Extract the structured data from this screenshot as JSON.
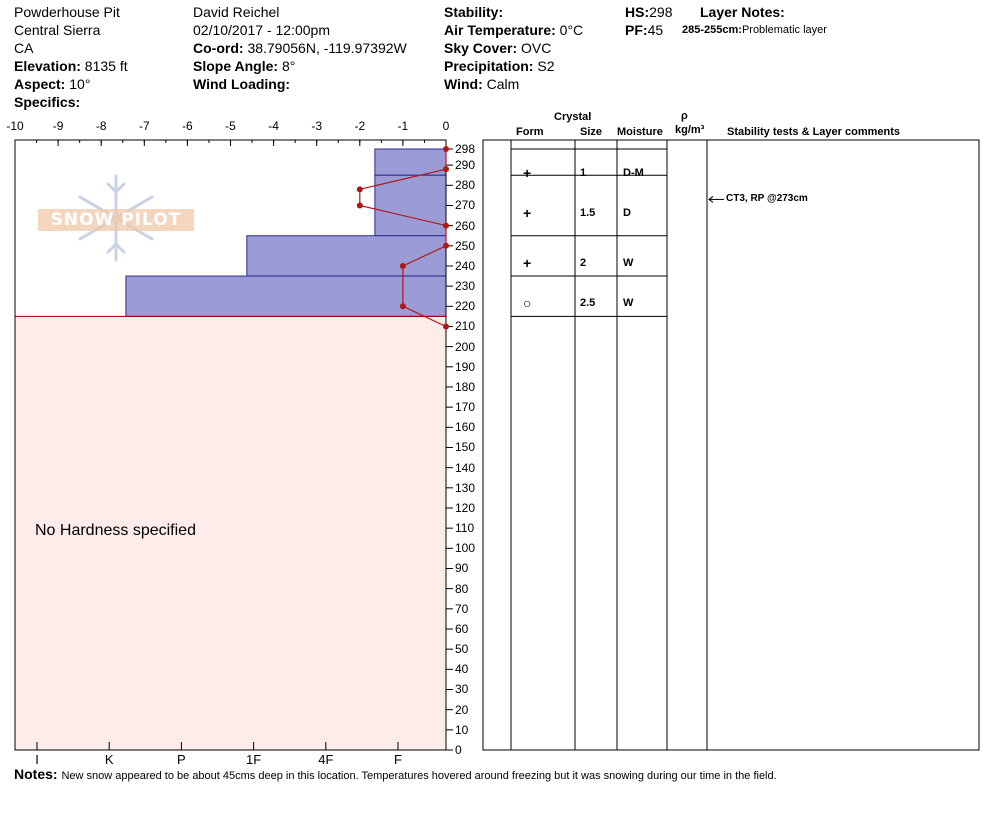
{
  "header": {
    "pit_name": "Powderhouse Pit",
    "range": "Central Sierra",
    "state": "CA",
    "elevation_label": "Elevation:",
    "elevation_value": "8135 ft",
    "aspect_label": "Aspect:",
    "aspect_value": "10°",
    "specifics_label": "Specifics:",
    "observer": "David Reichel",
    "datetime": "02/10/2017 - 12:00pm",
    "coord_label": "Co-ord:",
    "coord_value": "38.79056N, -119.97392W",
    "slope_label": "Slope Angle:",
    "slope_value": "8°",
    "wind_loading_label": "Wind Loading:",
    "stability_label": "Stability:",
    "air_temp_label": "Air Temperature:",
    "air_temp_value": "0°C",
    "sky_label": "Sky Cover:",
    "sky_value": "OVC",
    "precip_label": "Precipitation:",
    "precip_value": "S2",
    "wind_label": "Wind:",
    "wind_value": "Calm",
    "hs_label": "HS:",
    "hs_value": "298",
    "pf_label": "PF:",
    "pf_value": "45",
    "layer_notes_label": "Layer Notes:",
    "layer_note_range": "285-255cm:",
    "layer_note_text": "Problematic layer"
  },
  "table_headers": {
    "crystal": "Crystal",
    "form": "Form",
    "size": "Size",
    "moisture": "Moisture",
    "rho": "ρ",
    "density_unit": "kg/m³",
    "stability_comments": "Stability tests & Layer comments"
  },
  "logo_text": "SNOW PILOT",
  "no_hardness": "No Hardness specified",
  "notes_label": "Notes:",
  "notes_text": "New snow appeared to be about 45cms deep in this location. Temperatures hovered around freezing but it was snowing during our time in the field.",
  "colors": {
    "hardness_fill": "#9b9bd6",
    "hardness_stroke": "#2b2b8c",
    "no_hardness_fill": "#fdecea",
    "temp_line": "#b01818",
    "boundary": "#8b0000"
  },
  "chart_data": {
    "type": "snow-profile",
    "temperature_axis": {
      "min": -10,
      "max": 0,
      "ticks": [
        "-10",
        "-9",
        "-8",
        "-7",
        "-6",
        "-5",
        "-4",
        "-3",
        "-2",
        "-1",
        "0"
      ]
    },
    "hardness_axis": {
      "ticks": [
        "I",
        "K",
        "P",
        "1F",
        "4F",
        "F"
      ]
    },
    "height_axis": {
      "min": 0,
      "max": 298,
      "ticks": [
        "0",
        "10",
        "20",
        "30",
        "40",
        "50",
        "60",
        "70",
        "80",
        "90",
        "100",
        "110",
        "120",
        "130",
        "140",
        "150",
        "160",
        "170",
        "180",
        "190",
        "200",
        "210",
        "220",
        "230",
        "240",
        "250",
        "260",
        "270",
        "280",
        "290",
        "298"
      ]
    },
    "hardness_layers": [
      {
        "top": 298,
        "bottom": 285,
        "hardness_index": 1
      },
      {
        "top": 285,
        "bottom": 255,
        "hardness_index": 1
      },
      {
        "top": 255,
        "bottom": 235,
        "hardness_index": 2.8
      },
      {
        "top": 235,
        "bottom": 215,
        "hardness_index": 4.5
      }
    ],
    "no_hardness_below": 215,
    "temperature_profile": [
      {
        "height": 298,
        "temp": 0
      },
      {
        "height": 288,
        "temp": 0
      },
      {
        "height": 278,
        "temp": -2
      },
      {
        "height": 270,
        "temp": -2
      },
      {
        "height": 260,
        "temp": 0
      },
      {
        "height": 250,
        "temp": 0
      },
      {
        "height": 240,
        "temp": -1
      },
      {
        "height": 220,
        "temp": -1
      },
      {
        "height": 210,
        "temp": 0
      }
    ],
    "layers": [
      {
        "top": 298,
        "bottom": 285,
        "form": "",
        "size": "",
        "moisture": ""
      },
      {
        "top": 285,
        "bottom": 255,
        "form": "+",
        "size": "1",
        "moisture": "D-M"
      },
      {
        "top": 255,
        "bottom": 235,
        "form": "+",
        "size": "1.5",
        "moisture": "D"
      },
      {
        "top": 235,
        "bottom": 215,
        "form": "+",
        "size": "2",
        "moisture": "W"
      },
      {
        "top": 215,
        "bottom": 215,
        "form": "○",
        "size": "2.5",
        "moisture": "W"
      }
    ],
    "stability_tests": [
      {
        "height": 273,
        "text": "CT3, RP @273cm"
      }
    ]
  }
}
